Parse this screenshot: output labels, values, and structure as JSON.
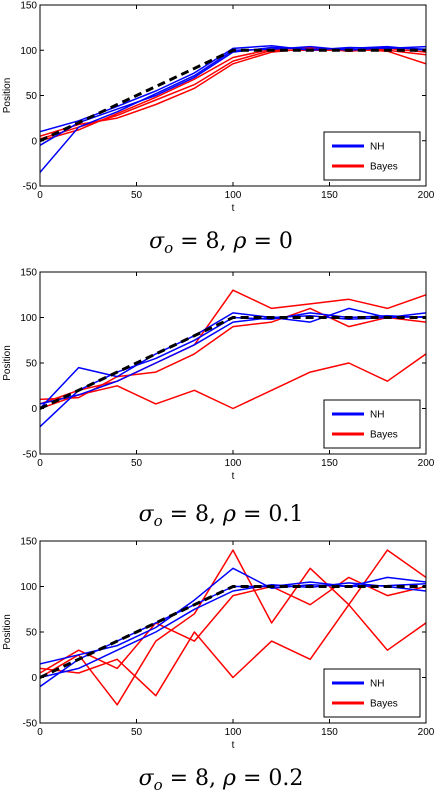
{
  "chart_data": [
    {
      "type": "line",
      "caption": "σo = 8, ρ = 0",
      "xlabel": "t",
      "ylabel": "Position",
      "xlim": [
        0,
        200
      ],
      "ylim": [
        -50,
        150
      ],
      "xticks": [
        0,
        50,
        100,
        150,
        200
      ],
      "yticks": [
        -50,
        0,
        50,
        100,
        150
      ],
      "legend": {
        "placement": "bottom-right",
        "entries": [
          {
            "name": "NH",
            "color": "#0000ff"
          },
          {
            "name": "Bayes",
            "color": "#ff0000"
          }
        ]
      },
      "reference": {
        "style": "dashed",
        "color": "#000000",
        "x": [
          0,
          100,
          200
        ],
        "y": [
          0,
          100,
          100
        ]
      },
      "series": [
        {
          "name": "Bayes",
          "color": "#ff0000",
          "traces": [
            {
              "x": [
                0,
                20,
                40,
                60,
                80,
                100,
                120,
                140,
                160,
                180,
                200
              ],
              "y": [
                2,
                15,
                28,
                45,
                62,
                88,
                100,
                100,
                100,
                100,
                95
              ]
            },
            {
              "x": [
                0,
                20,
                40,
                60,
                80,
                100,
                120,
                140,
                160,
                180,
                200
              ],
              "y": [
                0,
                12,
                30,
                48,
                68,
                92,
                101,
                103,
                99,
                102,
                98
              ]
            },
            {
              "x": [
                0,
                20,
                40,
                60,
                80,
                100,
                120,
                140,
                160,
                180,
                200
              ],
              "y": [
                5,
                18,
                25,
                40,
                58,
                85,
                98,
                102,
                101,
                99,
                85
              ]
            }
          ]
        },
        {
          "name": "NH",
          "color": "#0000ff",
          "traces": [
            {
              "x": [
                0,
                20,
                40,
                60,
                80,
                100,
                120,
                140,
                160,
                180,
                200
              ],
              "y": [
                -5,
                20,
                35,
                50,
                70,
                98,
                103,
                101,
                102,
                104,
                100
              ]
            },
            {
              "x": [
                0,
                20,
                40,
                60,
                80,
                100,
                120,
                140,
                160,
                180,
                200
              ],
              "y": [
                10,
                22,
                38,
                55,
                75,
                102,
                105,
                100,
                103,
                102,
                104
              ]
            },
            {
              "x": [
                0,
                20,
                40,
                60,
                80,
                100,
                120,
                140,
                160,
                180,
                200
              ],
              "y": [
                -35,
                15,
                32,
                52,
                72,
                100,
                101,
                104,
                100,
                103,
                101
              ]
            }
          ]
        }
      ]
    },
    {
      "type": "line",
      "caption": "σo = 8, ρ = 0.1",
      "xlabel": "t",
      "ylabel": "Position",
      "xlim": [
        0,
        200
      ],
      "ylim": [
        -50,
        150
      ],
      "xticks": [
        0,
        50,
        100,
        150,
        200
      ],
      "yticks": [
        -50,
        0,
        50,
        100,
        150
      ],
      "legend": {
        "placement": "bottom-right",
        "entries": [
          {
            "name": "NH",
            "color": "#0000ff"
          },
          {
            "name": "Bayes",
            "color": "#ff0000"
          }
        ]
      },
      "reference": {
        "style": "dashed",
        "color": "#000000",
        "x": [
          0,
          100,
          200
        ],
        "y": [
          0,
          100,
          100
        ]
      },
      "series": [
        {
          "name": "Bayes",
          "color": "#ff0000",
          "traces": [
            {
              "x": [
                0,
                20,
                40,
                60,
                80,
                100,
                120,
                140,
                160,
                180,
                200
              ],
              "y": [
                5,
                20,
                30,
                50,
                70,
                130,
                110,
                115,
                120,
                110,
                125
              ]
            },
            {
              "x": [
                0,
                20,
                40,
                60,
                80,
                100,
                120,
                140,
                160,
                180,
                200
              ],
              "y": [
                0,
                15,
                25,
                5,
                20,
                0,
                20,
                40,
                50,
                30,
                60
              ]
            },
            {
              "x": [
                0,
                20,
                40,
                60,
                80,
                100,
                120,
                140,
                160,
                180,
                200
              ],
              "y": [
                10,
                12,
                35,
                40,
                60,
                90,
                95,
                110,
                90,
                100,
                95
              ]
            }
          ]
        },
        {
          "name": "NH",
          "color": "#0000ff",
          "traces": [
            {
              "x": [
                0,
                20,
                40,
                60,
                80,
                100,
                120,
                140,
                160,
                180,
                200
              ],
              "y": [
                -20,
                20,
                40,
                55,
                75,
                100,
                98,
                105,
                100,
                102,
                100
              ]
            },
            {
              "x": [
                0,
                20,
                40,
                60,
                80,
                100,
                120,
                140,
                160,
                180,
                200
              ],
              "y": [
                0,
                45,
                35,
                60,
                80,
                105,
                100,
                95,
                110,
                100,
                105
              ]
            },
            {
              "x": [
                0,
                20,
                40,
                60,
                80,
                100,
                120,
                140,
                160,
                180,
                200
              ],
              "y": [
                5,
                15,
                30,
                50,
                70,
                95,
                100,
                102,
                98,
                100,
                101
              ]
            }
          ]
        }
      ]
    },
    {
      "type": "line",
      "caption": "σo = 8, ρ = 0.2",
      "xlabel": "t",
      "ylabel": "Position",
      "xlim": [
        0,
        200
      ],
      "ylim": [
        -50,
        150
      ],
      "xticks": [
        0,
        50,
        100,
        150,
        200
      ],
      "yticks": [
        -50,
        0,
        50,
        100,
        150
      ],
      "legend": {
        "placement": "bottom-right",
        "entries": [
          {
            "name": "NH",
            "color": "#0000ff"
          },
          {
            "name": "Bayes",
            "color": "#ff0000"
          }
        ]
      },
      "reference": {
        "style": "dashed",
        "color": "#000000",
        "x": [
          0,
          100,
          200
        ],
        "y": [
          0,
          100,
          100
        ]
      },
      "series": [
        {
          "name": "Bayes",
          "color": "#ff0000",
          "traces": [
            {
              "x": [
                0,
                20,
                40,
                60,
                80,
                100,
                120,
                140,
                160,
                180,
                200
              ],
              "y": [
                0,
                25,
                -30,
                40,
                70,
                140,
                60,
                120,
                80,
                140,
                110
              ]
            },
            {
              "x": [
                0,
                20,
                40,
                60,
                80,
                100,
                120,
                140,
                160,
                180,
                200
              ],
              "y": [
                10,
                5,
                20,
                -20,
                50,
                0,
                40,
                20,
                80,
                30,
                60
              ]
            },
            {
              "x": [
                0,
                20,
                40,
                60,
                80,
                100,
                120,
                140,
                160,
                180,
                200
              ],
              "y": [
                5,
                30,
                10,
                60,
                40,
                90,
                100,
                80,
                110,
                90,
                100
              ]
            }
          ]
        },
        {
          "name": "NH",
          "color": "#0000ff",
          "traces": [
            {
              "x": [
                0,
                20,
                40,
                60,
                80,
                100,
                120,
                140,
                160,
                180,
                200
              ],
              "y": [
                -10,
                20,
                40,
                60,
                80,
                100,
                100,
                105,
                100,
                110,
                105
              ]
            },
            {
              "x": [
                0,
                20,
                40,
                60,
                80,
                100,
                120,
                140,
                160,
                180,
                200
              ],
              "y": [
                15,
                25,
                35,
                55,
                85,
                120,
                98,
                102,
                100,
                101,
                103
              ]
            },
            {
              "x": [
                0,
                20,
                40,
                60,
                80,
                100,
                120,
                140,
                160,
                180,
                200
              ],
              "y": [
                0,
                10,
                30,
                50,
                75,
                95,
                102,
                99,
                104,
                100,
                95
              ]
            }
          ]
        }
      ]
    }
  ]
}
